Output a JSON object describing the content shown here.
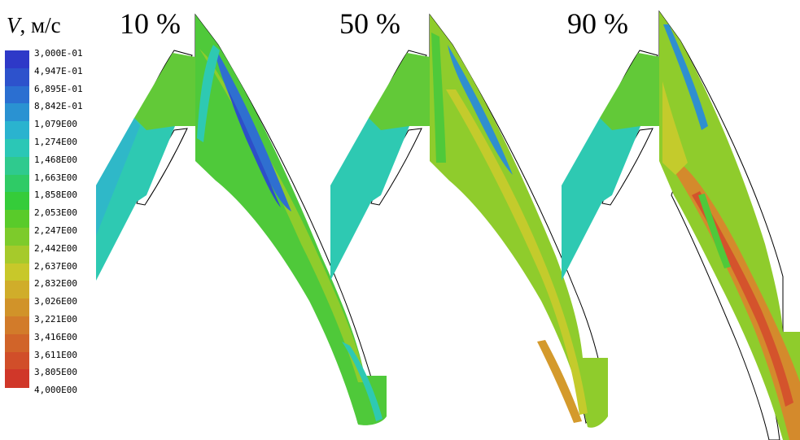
{
  "legend": {
    "variable": "V",
    "unit": ", м/с",
    "levels": [
      {
        "label": "3,000E-01",
        "color": "#2e39c8"
      },
      {
        "label": "4,947E-01",
        "color": "#2d52cc"
      },
      {
        "label": "6,895E-01",
        "color": "#2b6fd1"
      },
      {
        "label": "8,842E-01",
        "color": "#2a92d2"
      },
      {
        "label": "1,079E00",
        "color": "#2ab3cf"
      },
      {
        "label": "1,274E00",
        "color": "#2bc7b6"
      },
      {
        "label": "1,468E00",
        "color": "#2fca8e"
      },
      {
        "label": "1,663E00",
        "color": "#2fcb66"
      },
      {
        "label": "1,858E00",
        "color": "#35cc3a"
      },
      {
        "label": "2,053E00",
        "color": "#59cb2a"
      },
      {
        "label": "2,247E00",
        "color": "#7dcb2b"
      },
      {
        "label": "2,442E00",
        "color": "#a6ca2b"
      },
      {
        "label": "2,637E00",
        "color": "#c8c82a"
      },
      {
        "label": "2,832E00",
        "color": "#d0ad2a"
      },
      {
        "label": "3,026E00",
        "color": "#d19329"
      },
      {
        "label": "3,221E00",
        "color": "#d27b2a"
      },
      {
        "label": "3,416E00",
        "color": "#d16429"
      },
      {
        "label": "3,611E00",
        "color": "#d14e29"
      },
      {
        "label": "3,805E00",
        "color": "#d03729"
      }
    ],
    "max_label": "4,000E00"
  },
  "panels": [
    {
      "title": "10 %"
    },
    {
      "title": "50 %"
    },
    {
      "title": "90 %"
    }
  ],
  "colors": {
    "fluid_cyan": "#2ec9b2",
    "fluid_green": "#4fc93a",
    "fluid_lime": "#8fcc2c",
    "fluid_yellow": "#c4cb2c",
    "fluid_orange": "#d48a2c",
    "fluid_red": "#d4532c",
    "fluid_blue": "#2f6fd0",
    "fluid_teal": "#2fb8c8",
    "outline": "#000000"
  }
}
